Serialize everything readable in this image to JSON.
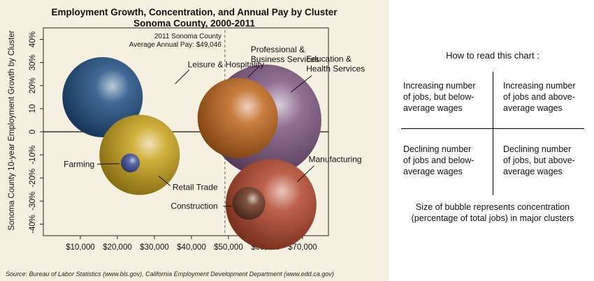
{
  "chart_data": {
    "type": "bubble",
    "title": "Employment Growth, Concentration, and Annual Pay by Cluster",
    "subtitle": "Sonoma County, 2000-2011",
    "ylabel": "Sonoma County 10-year Employment Growth by Cluster",
    "xlabel": "",
    "xlim": [
      0,
      77000
    ],
    "ylim": [
      -45,
      45
    ],
    "x_ticks": [
      10000,
      20000,
      30000,
      40000,
      50000,
      60000,
      70000
    ],
    "x_tick_labels": [
      "$10,000",
      "$20,000",
      "$30,000",
      "$40,000",
      "$50,000",
      "$60,000",
      "$70,000"
    ],
    "y_ticks": [
      40,
      30,
      20,
      10,
      0,
      -10,
      -20,
      -30,
      -40
    ],
    "y_tick_labels": [
      "40%",
      "30%",
      "20%",
      "10",
      "0",
      "-10%",
      "-20%",
      "-30%",
      "-40%"
    ],
    "average_line": {
      "x": 49046,
      "label_line1": "2011 Sonoma County",
      "label_line2": "Average Annual Pay: $49,046"
    },
    "series": [
      {
        "name": "Leisure & Hospitality",
        "x": 16000,
        "y": 15,
        "size": 11.5,
        "color": "#1f4e82",
        "label_x": 39000,
        "label_y": 28
      },
      {
        "name": "Retail Trade",
        "x": 26000,
        "y": -10,
        "size": 11.5,
        "color": "#c9a21a",
        "label_x": 33000,
        "label_y": -24
      },
      {
        "name": "Farming",
        "x": 23500,
        "y": -13.5,
        "size": 2.7,
        "color": "#3f4f9a",
        "label_x": 14000,
        "label_y": -14
      },
      {
        "name": "Professional & Business Services",
        "x": 52500,
        "y": 6,
        "size": 11.5,
        "color": "#c0661c",
        "label_x": 56000,
        "label_y": 32
      },
      {
        "name": "Education & Health Services",
        "x": 60000,
        "y": 5,
        "size": 16,
        "color": "#7e5680",
        "label_x": 71000,
        "label_y": 28
      },
      {
        "name": "Manufacturing",
        "x": 61500,
        "y": -31.5,
        "size": 13,
        "color": "#b2452b",
        "label_x": 72000,
        "label_y": -15
      },
      {
        "name": "Construction",
        "x": 55500,
        "y": -31,
        "size": 4.7,
        "color": "#6b3520",
        "label_x": 48000,
        "label_y": -31
      }
    ],
    "grid": false,
    "legend": "none"
  },
  "source_text": "Source: Bureau of Labor Statistics (www.bls.gov), California Employment Development Department (www.edd.ca.gov)",
  "read_guide": {
    "title": "How to read this chart :",
    "top_left": [
      "Increasing number",
      "of jobs, but below-",
      "average wages"
    ],
    "top_right": [
      "Increasing number",
      "of jobs and above-",
      "average wages"
    ],
    "bottom_left": [
      "Declining number",
      "of jobs and below-",
      "average wages"
    ],
    "bottom_right": [
      "Declining number",
      "of jobs, but above-",
      "average wages"
    ],
    "size_note": [
      "Size of bubble represents concentration",
      "(percentage of total jobs) in major clusters"
    ]
  }
}
